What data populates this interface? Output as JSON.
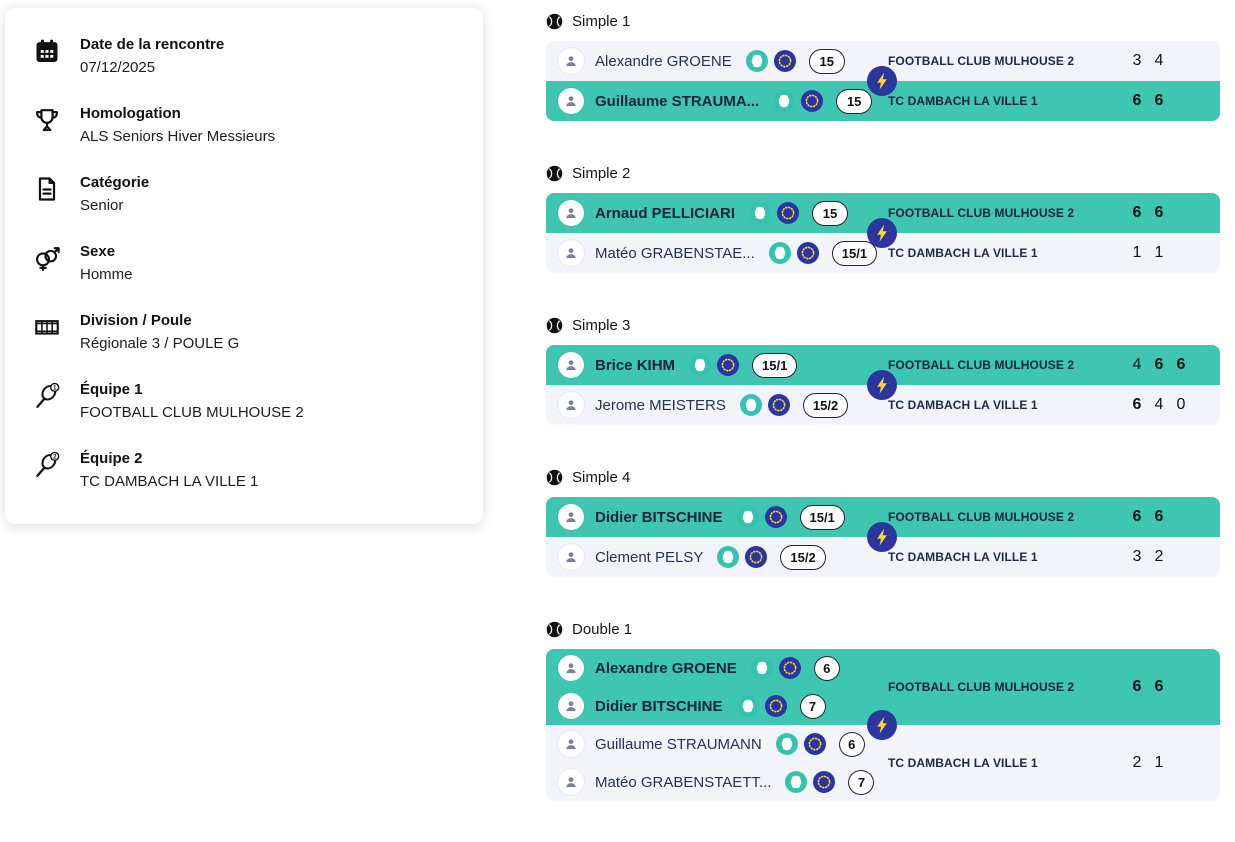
{
  "page": {
    "background": "#ffffff"
  },
  "colors": {
    "winner_row": "#3EC6B1",
    "loser_row": "#F3F4F9",
    "text_dark": "#1F2A44",
    "ball_badge": "#35C3AE",
    "eu_badge": "#2A35A4",
    "eu_stars": "#F6D32D",
    "bolt_circle": "#2B379F",
    "bolt": "#FFD92B"
  },
  "info_card": {
    "items": [
      {
        "icon": "calendar-icon",
        "label": "Date de la rencontre",
        "value": "07/12/2025"
      },
      {
        "icon": "trophy-icon",
        "label": "Homologation",
        "value": "ALS Seniors Hiver Messieurs"
      },
      {
        "icon": "category-icon",
        "label": "Catégorie",
        "value": "Senior"
      },
      {
        "icon": "gender-icon",
        "label": "Sexe",
        "value": "Homme"
      },
      {
        "icon": "division-icon",
        "label": "Division / Poule",
        "value": "Régionale 3 / POULE G"
      },
      {
        "icon": "racket-1-icon",
        "label": "Équipe 1",
        "value": "FOOTBALL CLUB MULHOUSE 2"
      },
      {
        "icon": "racket-2-icon",
        "label": "Équipe 2",
        "value": "TC DAMBACH LA VILLE 1"
      }
    ]
  },
  "matches": [
    {
      "title": "Simple 1",
      "teams": [
        {
          "winner": false,
          "team": "FOOTBALL CLUB MULHOUSE 2",
          "players": [
            {
              "name": "Alexandre GROENE",
              "rating": "15"
            }
          ],
          "scores": [
            {
              "v": "3",
              "won": false
            },
            {
              "v": "4",
              "won": false
            }
          ]
        },
        {
          "winner": true,
          "team": "TC DAMBACH LA VILLE 1",
          "players": [
            {
              "name": "Guillaume STRAUMA...",
              "rating": "15"
            }
          ],
          "scores": [
            {
              "v": "6",
              "won": true
            },
            {
              "v": "6",
              "won": true
            }
          ]
        }
      ]
    },
    {
      "title": "Simple 2",
      "teams": [
        {
          "winner": true,
          "team": "FOOTBALL CLUB MULHOUSE 2",
          "players": [
            {
              "name": "Arnaud PELLICIARI",
              "rating": "15"
            }
          ],
          "scores": [
            {
              "v": "6",
              "won": true
            },
            {
              "v": "6",
              "won": true
            }
          ]
        },
        {
          "winner": false,
          "team": "TC DAMBACH LA VILLE 1",
          "players": [
            {
              "name": "Matéo GRABENSTAE...",
              "rating": "15/1"
            }
          ],
          "scores": [
            {
              "v": "1",
              "won": false
            },
            {
              "v": "1",
              "won": false
            }
          ]
        }
      ]
    },
    {
      "title": "Simple 3",
      "teams": [
        {
          "winner": true,
          "team": "FOOTBALL CLUB MULHOUSE 2",
          "players": [
            {
              "name": "Brice KIHM",
              "rating": "15/1"
            }
          ],
          "scores": [
            {
              "v": "4",
              "won": false
            },
            {
              "v": "6",
              "won": true
            },
            {
              "v": "6",
              "won": true
            }
          ]
        },
        {
          "winner": false,
          "team": "TC DAMBACH LA VILLE 1",
          "players": [
            {
              "name": "Jerome MEISTERS",
              "rating": "15/2"
            }
          ],
          "scores": [
            {
              "v": "6",
              "won": true
            },
            {
              "v": "4",
              "won": false
            },
            {
              "v": "0",
              "won": false
            }
          ]
        }
      ]
    },
    {
      "title": "Simple 4",
      "teams": [
        {
          "winner": true,
          "team": "FOOTBALL CLUB MULHOUSE 2",
          "players": [
            {
              "name": "Didier BITSCHINE",
              "rating": "15/1"
            }
          ],
          "scores": [
            {
              "v": "6",
              "won": true
            },
            {
              "v": "6",
              "won": true
            }
          ]
        },
        {
          "winner": false,
          "team": "TC DAMBACH LA VILLE 1",
          "players": [
            {
              "name": "Clement PELSY",
              "rating": "15/2"
            }
          ],
          "scores": [
            {
              "v": "3",
              "won": false
            },
            {
              "v": "2",
              "won": false
            }
          ]
        }
      ]
    },
    {
      "title": "Double 1",
      "teams": [
        {
          "winner": true,
          "team": "FOOTBALL CLUB MULHOUSE 2",
          "players": [
            {
              "name": "Alexandre GROENE",
              "rating": "6"
            },
            {
              "name": "Didier BITSCHINE",
              "rating": "7"
            }
          ],
          "scores": [
            {
              "v": "6",
              "won": true
            },
            {
              "v": "6",
              "won": true
            }
          ]
        },
        {
          "winner": false,
          "team": "TC DAMBACH LA VILLE 1",
          "players": [
            {
              "name": "Guillaume STRAUMANN",
              "rating": "6"
            },
            {
              "name": "Matéo GRABENSTAETT...",
              "rating": "7"
            }
          ],
          "scores": [
            {
              "v": "2",
              "won": false
            },
            {
              "v": "1",
              "won": false
            }
          ]
        }
      ]
    }
  ]
}
